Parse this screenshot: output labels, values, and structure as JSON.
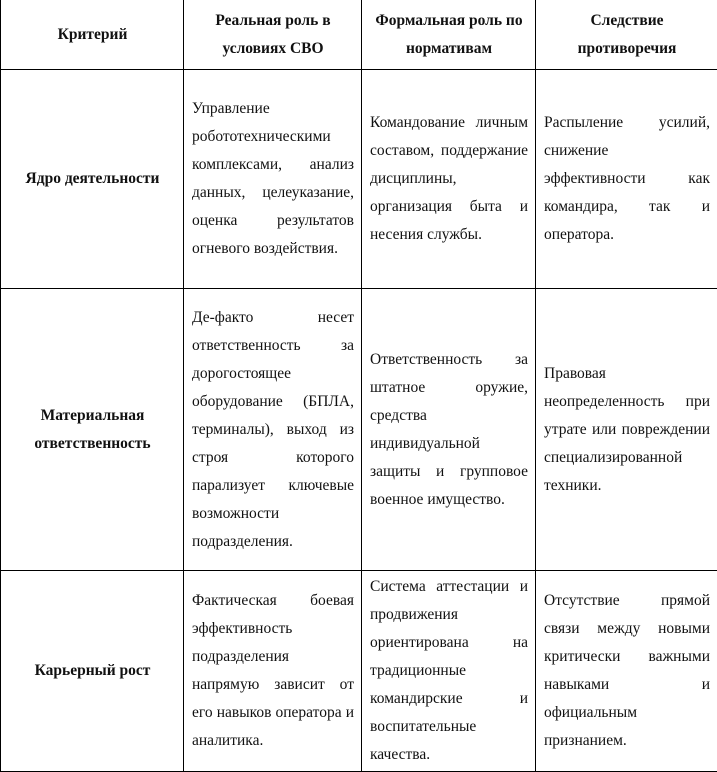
{
  "headers": [
    "Критерий",
    "Реальная роль в условиях СВО",
    "Формальная роль по нормативам",
    "Следствие противоречия"
  ],
  "rows": [
    {
      "criterion": "Ядро деятельности",
      "real": "Управление робототехническими комплексами, анализ данных, целеуказание, оценка результатов огневого воздействия.",
      "formal": "Командование личным составом, поддержание дисциплины, организация быта и несения службы.",
      "consequence": "Распыление усилий, снижение эффективности как командира, так и оператора."
    },
    {
      "criterion": "Материальная ответственность",
      "real": "Де-факто несет ответственность за дорогостоящее оборудование (БПЛА, терминалы), выход из строя которого парализует ключевые возможности подразделения.",
      "formal": "Ответственность за штатное оружие, средства индивидуальной защиты и групповое военное имущество.",
      "consequence": "Правовая неопределенность при утрате или повреждении специализированной техники."
    },
    {
      "criterion": "Карьерный рост",
      "real": "Фактическая боевая эффективность подразделения напрямую зависит от его навыков оператора и аналитика.",
      "formal": "Система аттестации и продвижения ориентирована на традиционные командирские и воспитательные качества.",
      "consequence": "Отсутствие прямой связи между новыми критически важными навыками и официальным признанием."
    }
  ]
}
